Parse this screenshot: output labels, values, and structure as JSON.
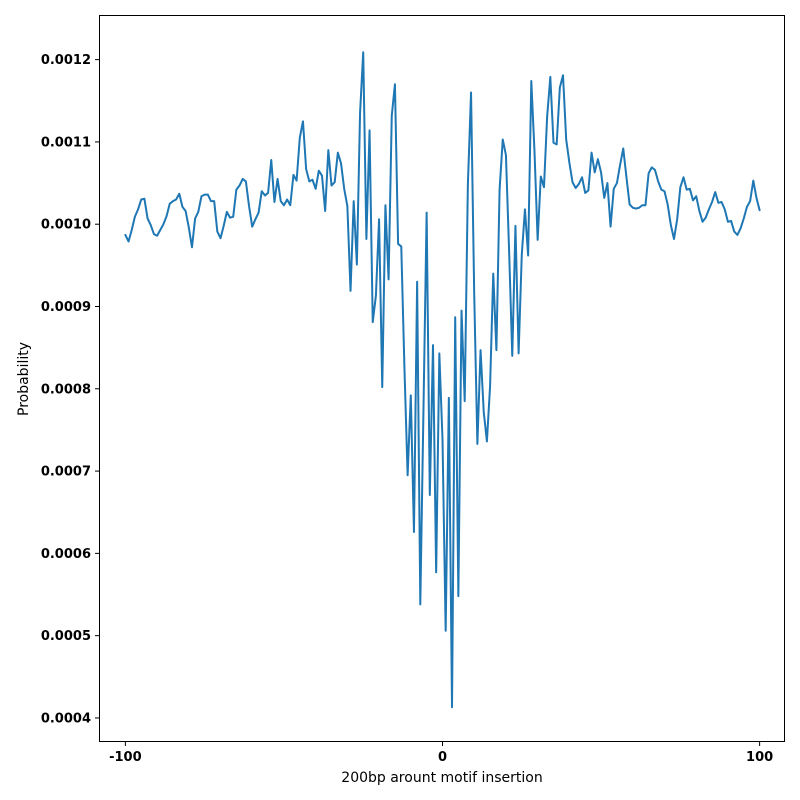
{
  "chart_data": {
    "type": "line",
    "title": "",
    "xlabel": "200bp arount motif insertion",
    "ylabel": "Probability",
    "xlim": [
      -108,
      108
    ],
    "ylim": [
      0.000372,
      0.001253
    ],
    "xticks": [
      -100,
      0,
      100
    ],
    "xtick_labels": [
      "-100",
      "0",
      "100"
    ],
    "yticks": [
      0.0004,
      0.0005,
      0.0006,
      0.0007,
      0.0008,
      0.0009,
      0.001,
      0.0011,
      0.0012
    ],
    "ytick_labels": [
      "0.0004",
      "0.0005",
      "0.0006",
      "0.0007",
      "0.0008",
      "0.0009",
      "0.0010",
      "0.0011",
      "0.0012"
    ],
    "grid": false,
    "legend": "none",
    "line_color": "#1f77b4",
    "series": [
      {
        "x_start": -100,
        "x_step": 1,
        "values": [
          0.000987,
          0.000979,
          0.000993,
          0.001009,
          0.001018,
          0.00103,
          0.001031,
          0.001007,
          0.000999,
          0.000988,
          0.000986,
          0.000993,
          0.001,
          0.00101,
          0.001025,
          0.001028,
          0.00103,
          0.001037,
          0.001021,
          0.001016,
          0.000996,
          0.000972,
          0.001007,
          0.001015,
          0.001034,
          0.001036,
          0.001036,
          0.001028,
          0.001028,
          0.000991,
          0.000983,
          0.000998,
          0.001015,
          0.001008,
          0.001009,
          0.001042,
          0.001047,
          0.001055,
          0.001052,
          0.001022,
          0.000997,
          0.001006,
          0.001014,
          0.00104,
          0.001035,
          0.001038,
          0.001078,
          0.001027,
          0.001055,
          0.001028,
          0.001023,
          0.00103,
          0.001023,
          0.00106,
          0.001053,
          0.001105,
          0.001125,
          0.001067,
          0.001052,
          0.001054,
          0.001043,
          0.001065,
          0.001059,
          0.001016,
          0.00109,
          0.001047,
          0.001051,
          0.001087,
          0.001074,
          0.001043,
          0.001022,
          0.000919,
          0.001028,
          0.000951,
          0.001135,
          0.001209,
          0.000982,
          0.001114,
          0.000881,
          0.000913,
          0.001006,
          0.000802,
          0.001023,
          0.000933,
          0.001132,
          0.00117,
          0.000976,
          0.000973,
          0.000825,
          0.000695,
          0.000792,
          0.000626,
          0.00093,
          0.000538,
          0.000775,
          0.001014,
          0.000671,
          0.000853,
          0.000577,
          0.000843,
          0.000739,
          0.000506,
          0.000789,
          0.000413,
          0.000887,
          0.000548,
          0.000895,
          0.000785,
          0.001048,
          0.00116,
          0.000915,
          0.000733,
          0.000847,
          0.000772,
          0.000736,
          0.000803,
          0.00094,
          0.000847,
          0.001042,
          0.001103,
          0.001084,
          0.000968,
          0.00084,
          0.000998,
          0.000843,
          0.000963,
          0.001018,
          0.000962,
          0.001174,
          0.001089,
          0.000981,
          0.001058,
          0.001045,
          0.001131,
          0.001179,
          0.001099,
          0.001097,
          0.001166,
          0.001181,
          0.001103,
          0.001075,
          0.001051,
          0.001044,
          0.001049,
          0.001057,
          0.001038,
          0.001041,
          0.001087,
          0.001063,
          0.001079,
          0.001063,
          0.001032,
          0.00105,
          0.000997,
          0.001043,
          0.00105,
          0.001072,
          0.001092,
          0.001057,
          0.001024,
          0.00102,
          0.001019,
          0.00102,
          0.001023,
          0.001023,
          0.001062,
          0.001069,
          0.001066,
          0.001052,
          0.001042,
          0.00104,
          0.001024,
          0.000999,
          0.000982,
          0.001006,
          0.001045,
          0.001057,
          0.001042,
          0.001043,
          0.001029,
          0.001034,
          0.001016,
          0.001003,
          0.001008,
          0.001018,
          0.001027,
          0.001039,
          0.001026,
          0.001027,
          0.001018,
          0.001003,
          0.001004,
          0.000991,
          0.000987,
          0.000995,
          0.001007,
          0.001021,
          0.001028,
          0.001053,
          0.001032,
          0.001017
        ]
      }
    ]
  }
}
